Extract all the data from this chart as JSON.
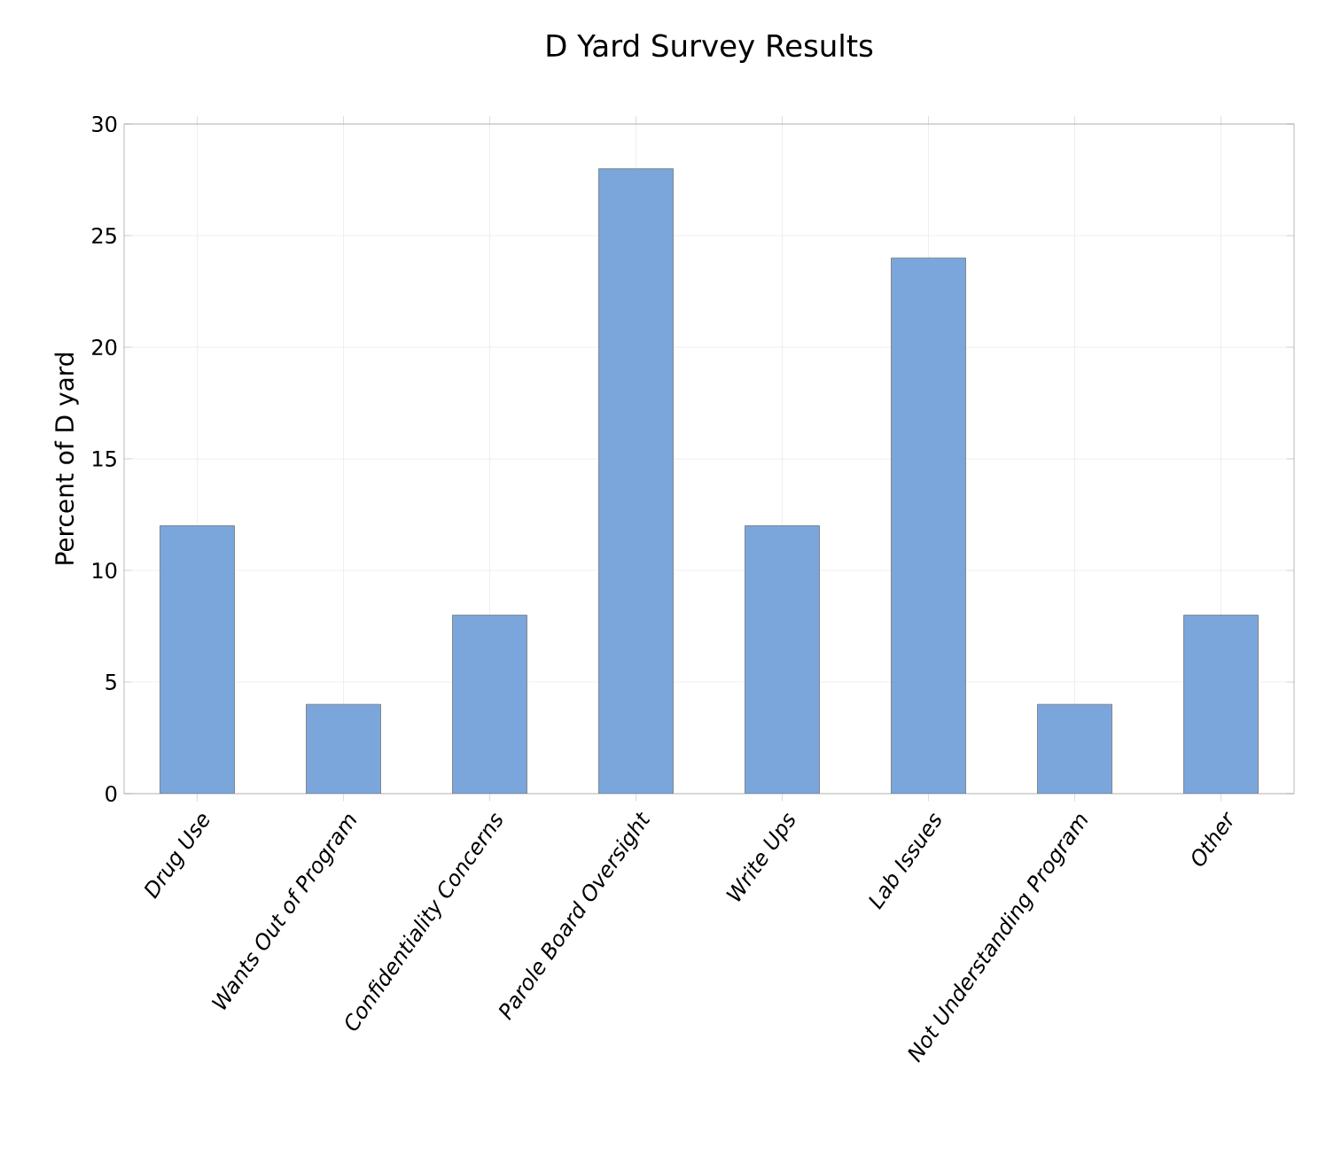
{
  "chart_data": {
    "type": "bar",
    "title": "D Yard Survey Results",
    "ylabel": "Percent of D yard",
    "categories": [
      "Drug Use",
      "Wants Out of Program",
      "Confidentiality Concerns",
      "Parole Board Oversight",
      "Write Ups",
      "Lab Issues",
      "Not Understanding Program",
      "Other"
    ],
    "values": [
      12,
      4,
      8,
      28,
      12,
      24,
      4,
      8
    ],
    "color": "#7aa6dc",
    "ylim": [
      0,
      30
    ],
    "yticks": [
      0,
      5,
      10,
      15,
      20,
      25,
      30
    ],
    "grid": true
  }
}
